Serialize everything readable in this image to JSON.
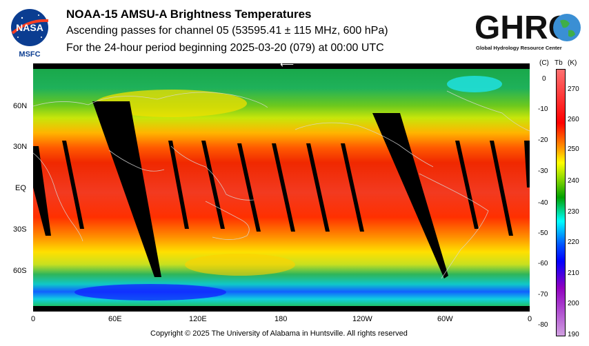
{
  "header": {
    "title": "NOAA-15 AMSU-A Brightness Temperatures",
    "subtitle": "Ascending passes for channel 05 (53595.41 ± 115 MHz, 600 hPa)",
    "period": "For the 24-hour period beginning 2025-03-20 (079) at 00:00 UTC"
  },
  "logos": {
    "nasa": {
      "text": "NASA",
      "sub": "MSFC",
      "color": "#0b3d91",
      "accent": "#fc3d21"
    },
    "ghrc": {
      "text": "GHRC",
      "sub": "Global Hydrology Resource Center",
      "color": "#111111"
    }
  },
  "map": {
    "lat_labels": [
      "60N",
      "30N",
      "EQ",
      "30S",
      "60S"
    ],
    "lon_labels": [
      "0",
      "60E",
      "120E",
      "180",
      "120W",
      "60W",
      "0"
    ],
    "direction_glyph": "⟵",
    "background_color": "#000000"
  },
  "colorbar": {
    "unit_c": "(C)",
    "unit_tb": "Tb",
    "unit_k": "(K)",
    "celsius_ticks": [
      "0",
      "-10",
      "-20",
      "-30",
      "-40",
      "-50",
      "-60",
      "-70",
      "-80"
    ],
    "kelvin_ticks": [
      "270",
      "260",
      "250",
      "240",
      "230",
      "220",
      "210",
      "200",
      "190"
    ],
    "colors_top_to_bottom": [
      "#ff6060",
      "#ff0000",
      "#ffa000",
      "#ffff00",
      "#a0e000",
      "#00a000",
      "#00ffff",
      "#0000ff",
      "#9000c0",
      "#d0a0e0"
    ]
  },
  "footer": {
    "copyright": "Copyright © 2025 The University of Alabama in Huntsville.  All rights reserved"
  }
}
